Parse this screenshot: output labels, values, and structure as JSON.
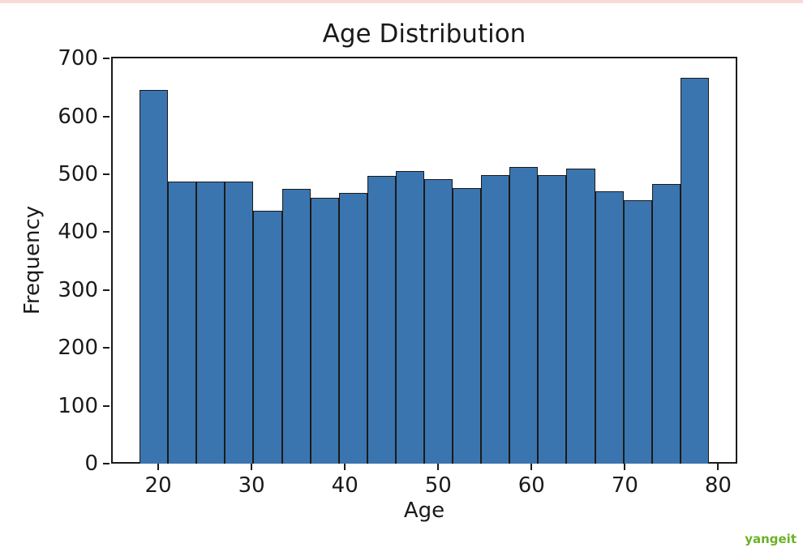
{
  "page": {
    "background": "#ffffff",
    "top_border_color": "#f8dbd8"
  },
  "watermark": {
    "text": "yangeit",
    "color": "#6ab226"
  },
  "chart_data": {
    "type": "bar",
    "subtype": "histogram",
    "title": "Age Distribution",
    "xlabel": "Age",
    "ylabel": "Frequency",
    "bin_start": 18,
    "bin_end": 79,
    "bin_width": 3.05,
    "values": [
      645,
      487,
      487,
      487,
      437,
      475,
      459,
      468,
      497,
      506,
      492,
      476,
      499,
      512,
      499,
      510,
      470,
      455,
      483,
      667
    ],
    "x_ticks": [
      20,
      30,
      40,
      50,
      60,
      70,
      80
    ],
    "y_ticks": [
      0,
      100,
      200,
      300,
      400,
      500,
      600,
      700
    ],
    "xlim": [
      14.95,
      82.05
    ],
    "ylim": [
      0,
      703
    ],
    "grid": false,
    "legend": null,
    "bar_color": "#3b75af",
    "bar_edge_color": "#1a1a1a",
    "text_color": "#1a1a1a"
  }
}
